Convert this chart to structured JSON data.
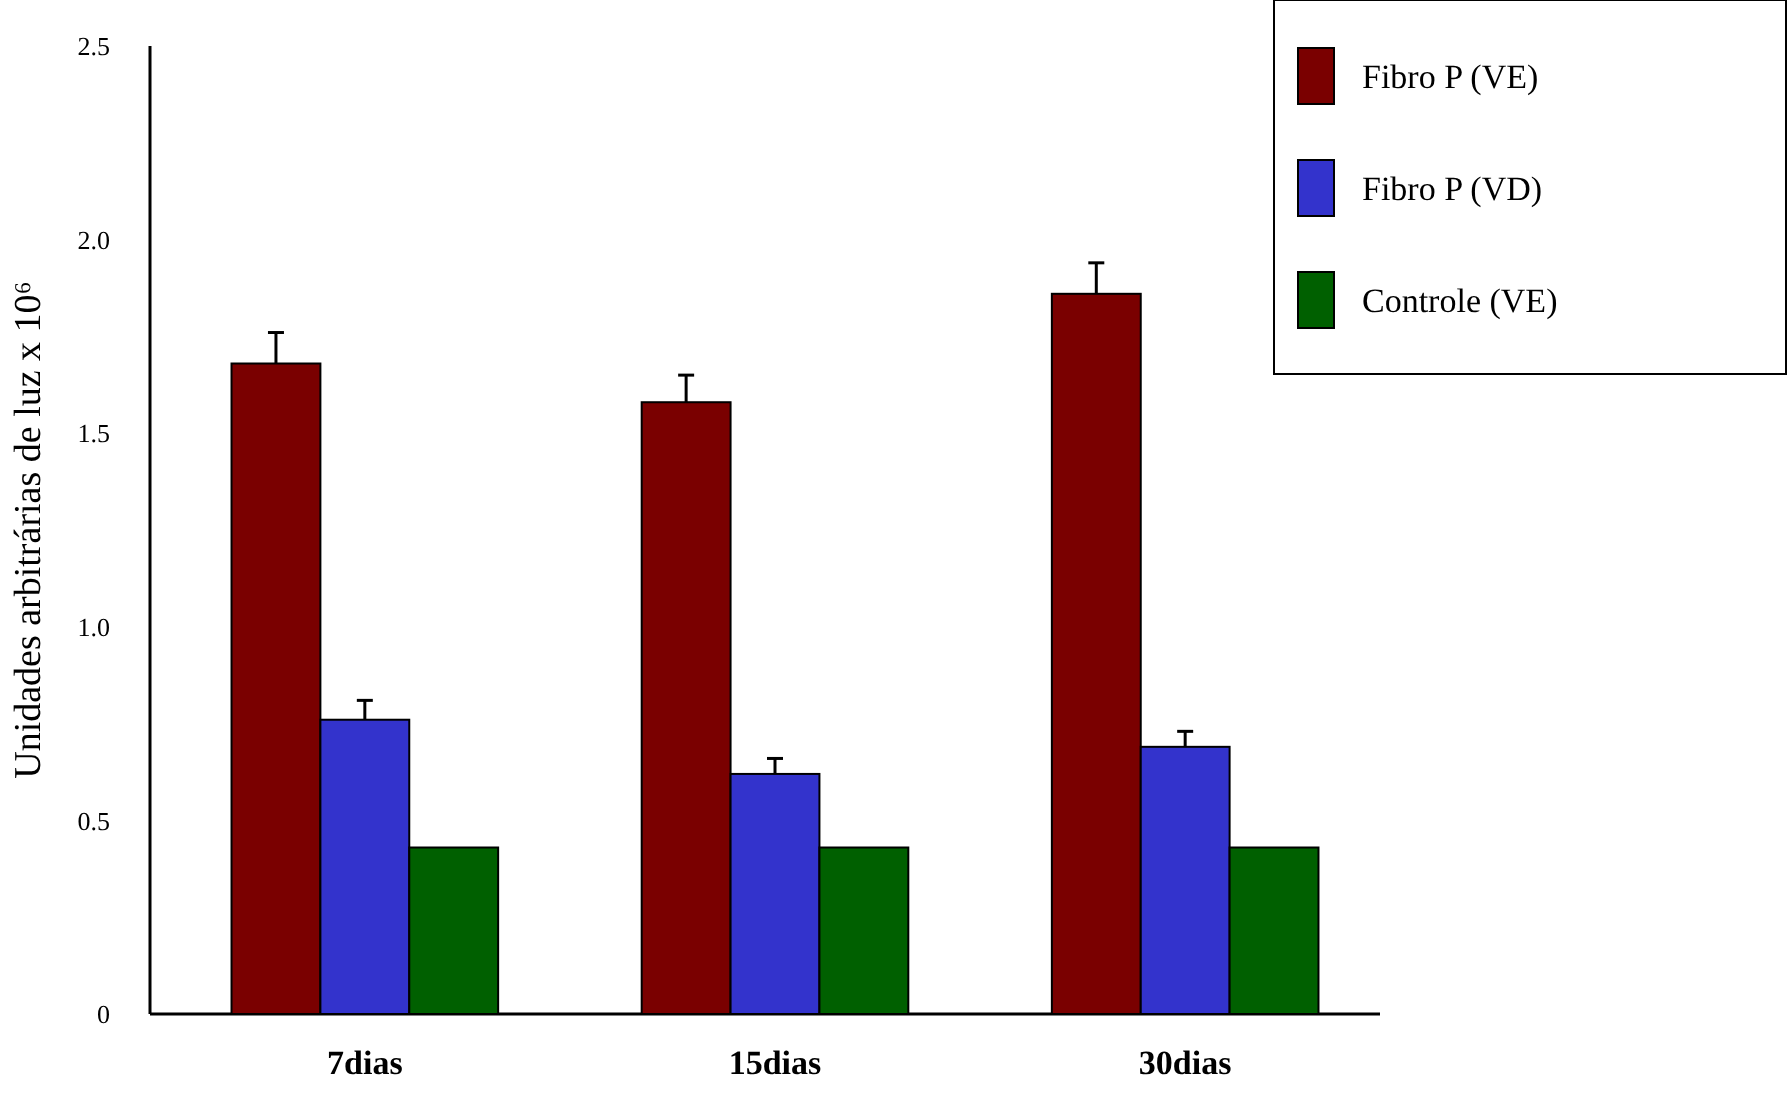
{
  "chart_data": {
    "type": "bar",
    "ylabel": "Unidades arbitrárias de luz x 10⁶",
    "categories": [
      "7dias",
      "15dias",
      "30dias"
    ],
    "series": [
      {
        "name": "Fibro P (VE)",
        "color": "#7a0000",
        "values": [
          1.68,
          1.58,
          1.86
        ],
        "errors": [
          0.08,
          0.07,
          0.08
        ]
      },
      {
        "name": "Fibro P (VD)",
        "color": "#3333cc",
        "values": [
          0.76,
          0.62,
          0.69
        ],
        "errors": [
          0.05,
          0.04,
          0.04
        ]
      },
      {
        "name": "Controle (VE)",
        "color": "#006000",
        "values": [
          0.43,
          0.43,
          0.43
        ]
      }
    ],
    "ylim": [
      0,
      2.5
    ],
    "yticks": [
      0,
      {
        "value": 0.5,
        "label": "0.5"
      },
      {
        "value": 1,
        "label": "1.0"
      },
      {
        "value": 1.5,
        "label": "1.5"
      },
      {
        "value": 2,
        "label": "2.0"
      },
      {
        "value": 2.5,
        "label": "2.5"
      }
    ],
    "grid": false,
    "legend": "top right"
  }
}
